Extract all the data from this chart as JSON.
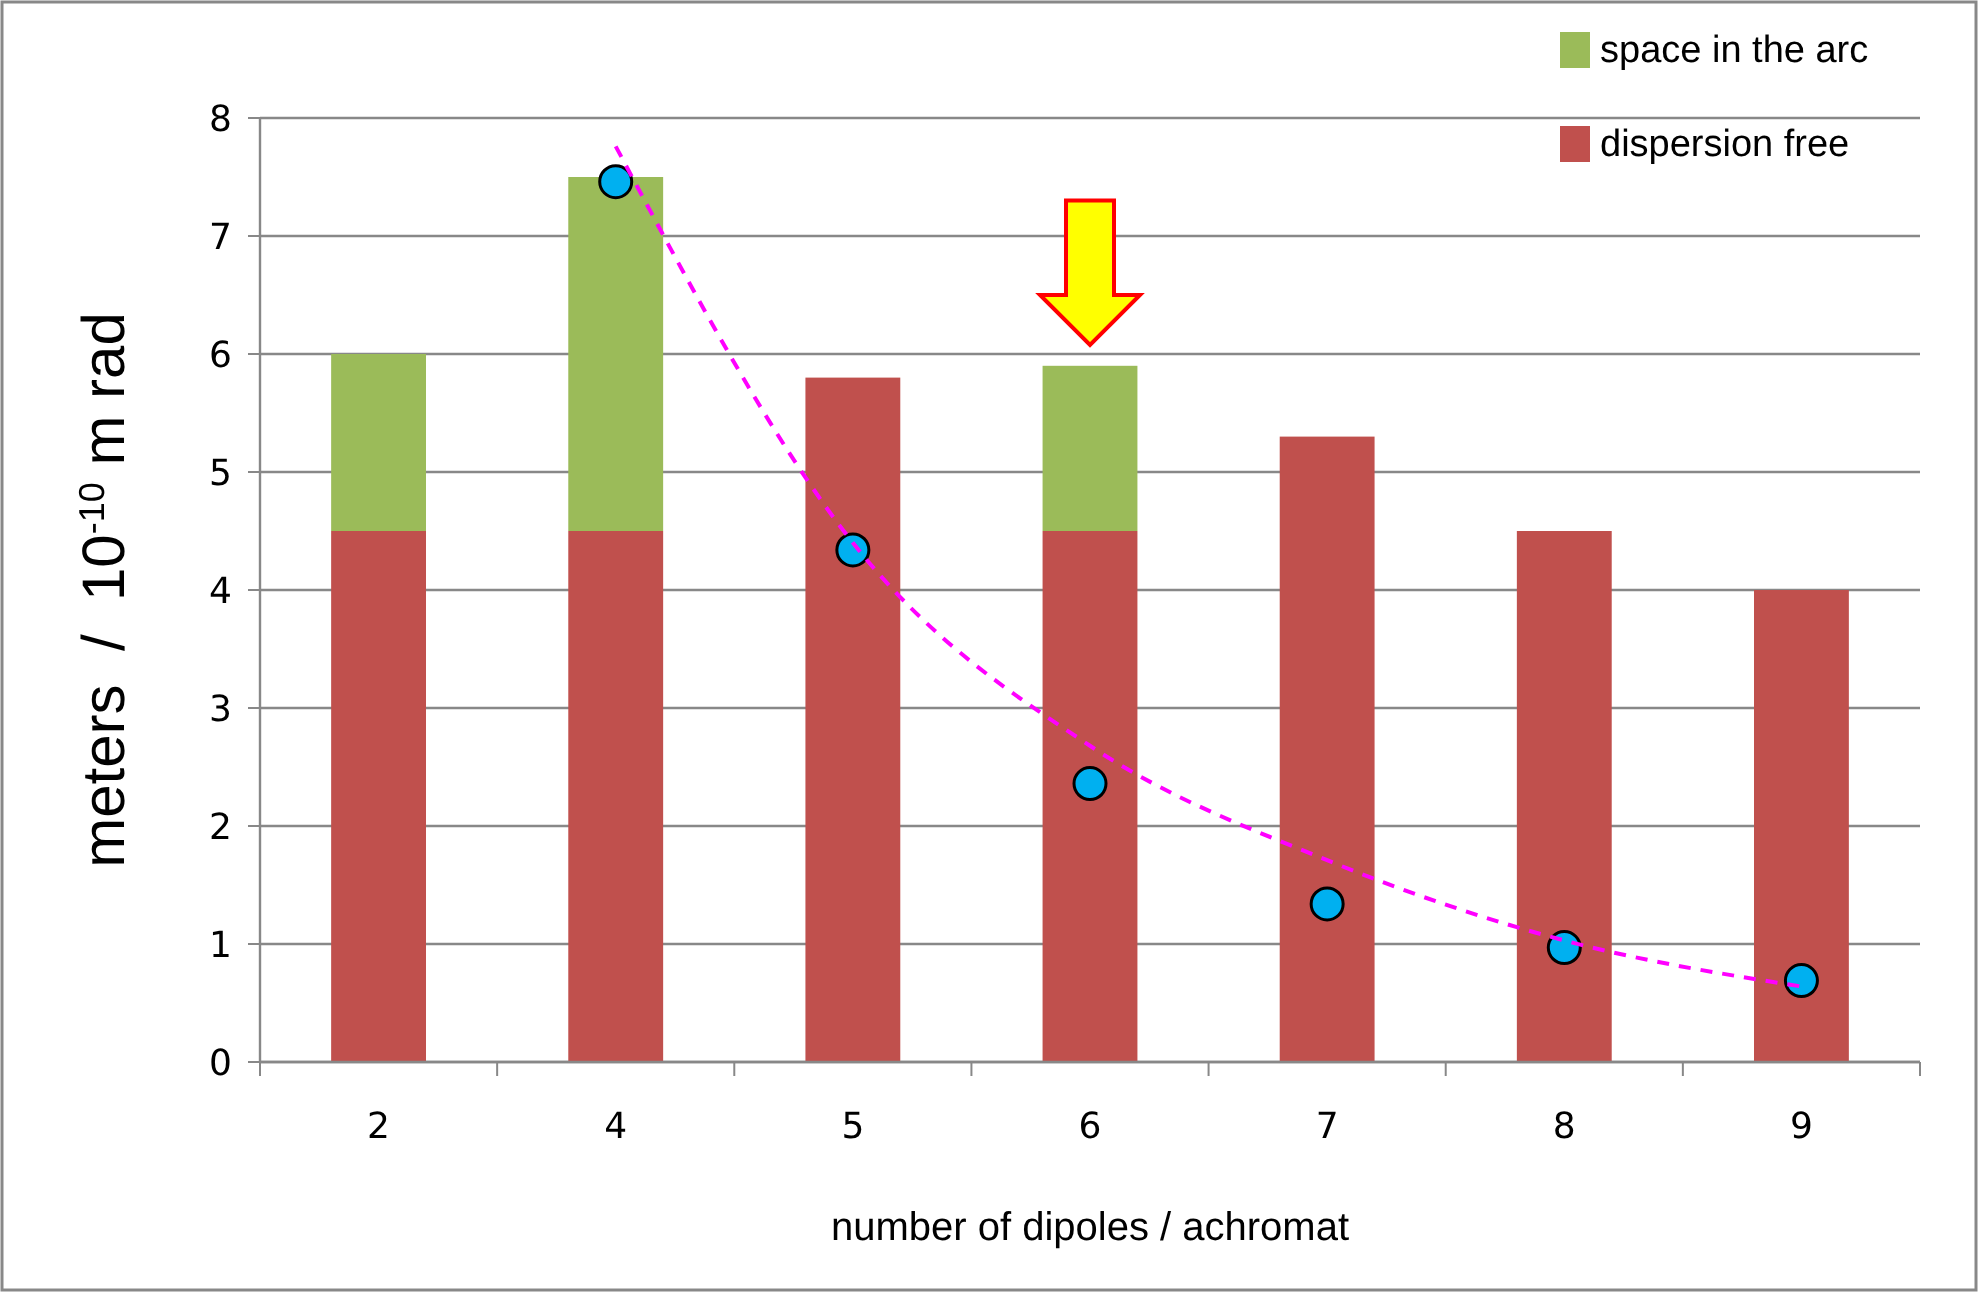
{
  "chart_data": {
    "type": "bar",
    "stacked": true,
    "xlabel": "number of dipoles / achromat",
    "ylabel": "meters  /  10$^{-10}$ m rad",
    "categories": [
      "2",
      "4",
      "5",
      "6",
      "7",
      "8",
      "9"
    ],
    "series": [
      {
        "name": "dispersion free",
        "color": "#c0504d",
        "values": [
          4.5,
          4.5,
          5.8,
          4.5,
          5.3,
          4.5,
          4.0
        ]
      },
      {
        "name": "space in the arc",
        "color": "#9bbb59",
        "values": [
          1.5,
          3.0,
          null,
          1.4,
          null,
          null,
          null
        ]
      },
      {
        "type": "scatter",
        "color": "#00b0f0",
        "marker": "circle",
        "x": [
          "4",
          "5",
          "6",
          "7",
          "8",
          "9"
        ],
        "values": [
          7.46,
          4.34,
          2.36,
          1.34,
          0.97,
          0.69
        ]
      },
      {
        "type": "line",
        "color": "#ff00ff",
        "marker": "none",
        "line_style": "dashed",
        "x": [
          "4",
          "5",
          "6",
          "7",
          "8",
          "9"
        ],
        "values": [
          7.76,
          4.4,
          2.68,
          1.71,
          1.03,
          0.64
        ]
      }
    ],
    "ylim": [
      0,
      8
    ],
    "yticks": [
      0,
      1,
      2,
      3,
      4,
      5,
      6,
      7,
      8
    ],
    "grid": "y",
    "legend": "top right"
  }
}
